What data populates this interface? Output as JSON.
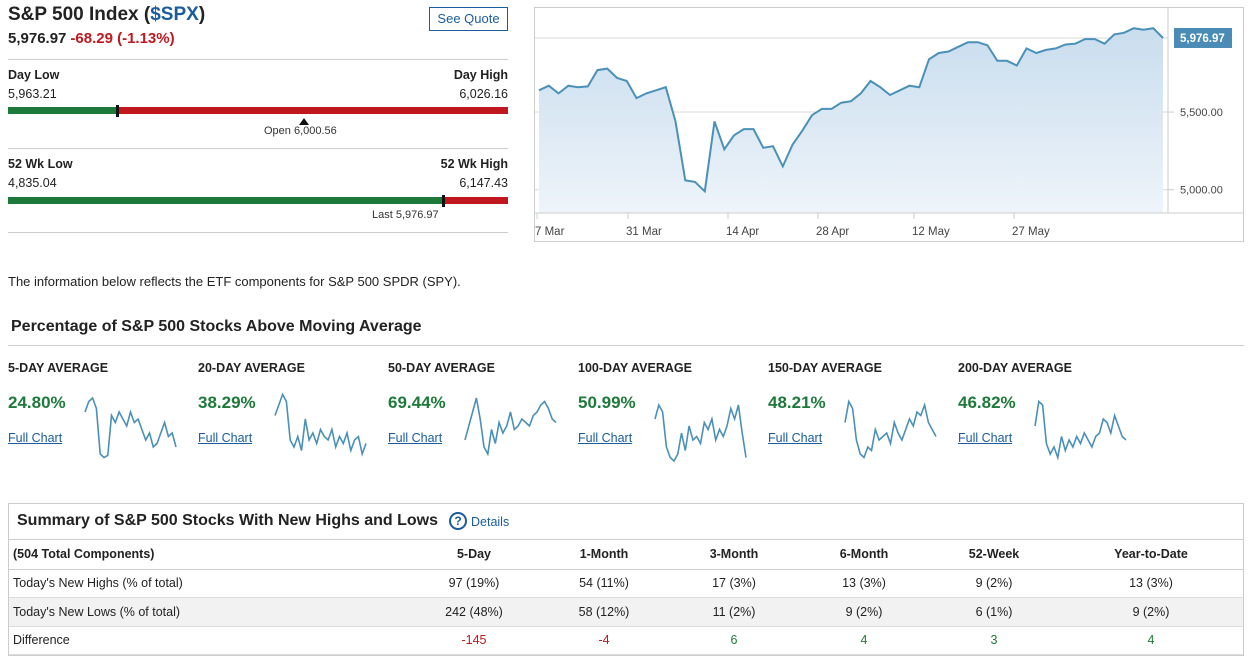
{
  "header": {
    "title_prefix": "S&P 500 Index (",
    "symbol": "$SPX",
    "title_suffix": ")",
    "price": "5,976.97",
    "change": "-68.29 (-1.13%)",
    "see_quote": "See Quote"
  },
  "day_range": {
    "low_label": "Day Low",
    "low_value": "5,963.21",
    "high_label": "Day High",
    "high_value": "6,026.16",
    "position": 0.218,
    "open_note": "Open 6,000.56",
    "open_position": 0.591
  },
  "wk52_range": {
    "low_label": "52 Wk Low",
    "low_value": "4,835.04",
    "high_label": "52 Wk High",
    "high_value": "6,147.43",
    "position": 0.87,
    "last_note": "Last 5,976.97"
  },
  "price_chart": {
    "x_labels": [
      "7 Mar",
      "31 Mar",
      "14 Apr",
      "28 Apr",
      "12 May",
      "27 May"
    ],
    "y_labels": [
      "5,500.00",
      "5,000.00"
    ],
    "current_label": "5,976.97",
    "y_ticks": [
      5500,
      5000
    ],
    "ylim": [
      4850,
      6170
    ],
    "values": [
      5640,
      5670,
      5620,
      5670,
      5660,
      5665,
      5770,
      5780,
      5720,
      5700,
      5590,
      5620,
      5640,
      5660,
      5440,
      5060,
      5050,
      4990,
      5440,
      5260,
      5350,
      5390,
      5390,
      5270,
      5280,
      5150,
      5290,
      5380,
      5480,
      5520,
      5520,
      5560,
      5570,
      5620,
      5700,
      5660,
      5610,
      5640,
      5670,
      5660,
      5840,
      5880,
      5890,
      5920,
      5950,
      5950,
      5930,
      5830,
      5830,
      5800,
      5910,
      5880,
      5900,
      5910,
      5935,
      5940,
      5970,
      5970,
      5940,
      6000,
      6010,
      6040,
      6030,
      6040,
      5977
    ],
    "colors": {
      "line": "#4a90b8",
      "fill_top": "#c9ddee",
      "fill_bottom": "#eef4fa",
      "label_bg": "#4a8cb5"
    }
  },
  "info_text": "The information below reflects the ETF components for S&P 500 SPDR (SPY).",
  "moving_avg": {
    "title": "Percentage of S&P 500 Stocks Above Moving Average",
    "link_label": "Full Chart",
    "items": [
      {
        "label": "5-DAY AVERAGE",
        "value": "24.80%",
        "spark": [
          70,
          85,
          90,
          75,
          10,
          5,
          8,
          65,
          55,
          70,
          60,
          50,
          70,
          55,
          60,
          45,
          30,
          40,
          20,
          25,
          40,
          55,
          35,
          40,
          20
        ]
      },
      {
        "label": "20-DAY AVERAGE",
        "value": "38.29%",
        "spark": [
          65,
          80,
          95,
          85,
          30,
          20,
          35,
          15,
          60,
          30,
          40,
          25,
          45,
          35,
          30,
          45,
          20,
          35,
          25,
          40,
          15,
          30,
          35,
          10,
          25
        ]
      },
      {
        "label": "50-DAY AVERAGE",
        "value": "69.44%",
        "spark": [
          30,
          50,
          70,
          90,
          60,
          20,
          10,
          45,
          25,
          55,
          40,
          50,
          70,
          45,
          50,
          60,
          55,
          50,
          65,
          70,
          80,
          85,
          75,
          60,
          55
        ]
      },
      {
        "label": "100-DAY AVERAGE",
        "value": "50.99%",
        "spark": [
          60,
          80,
          70,
          20,
          5,
          0,
          10,
          40,
          15,
          50,
          30,
          35,
          25,
          55,
          45,
          60,
          30,
          45,
          35,
          50,
          75,
          60,
          80,
          40,
          5
        ]
      },
      {
        "label": "150-DAY AVERAGE",
        "value": "48.21%",
        "spark": [
          55,
          85,
          75,
          30,
          10,
          5,
          20,
          15,
          45,
          30,
          35,
          40,
          25,
          55,
          40,
          30,
          45,
          60,
          50,
          70,
          65,
          80,
          55,
          45,
          35
        ]
      },
      {
        "label": "200-DAY AVERAGE",
        "value": "46.82%",
        "spark": [
          50,
          85,
          80,
          25,
          10,
          20,
          5,
          35,
          15,
          30,
          20,
          35,
          25,
          40,
          30,
          20,
          35,
          40,
          60,
          55,
          40,
          65,
          50,
          35,
          30
        ]
      }
    ]
  },
  "summary": {
    "title": "Summary of S&P 500 Stocks With New Highs and Lows",
    "details_label": "Details",
    "columns": [
      "(504 Total Components)",
      "5-Day",
      "1-Month",
      "3-Month",
      "6-Month",
      "52-Week",
      "Year-to-Date"
    ],
    "rows": [
      {
        "label": "Today's New Highs (% of total)",
        "cells": [
          "97 (19%)",
          "54 (11%)",
          "17 (3%)",
          "13 (3%)",
          "9 (2%)",
          "13 (3%)"
        ]
      },
      {
        "label": "Today's New Lows (% of total)",
        "cells": [
          "242 (48%)",
          "58 (12%)",
          "11 (2%)",
          "9 (2%)",
          "6 (1%)",
          "9 (2%)"
        ]
      },
      {
        "label": "Difference",
        "cells": [
          "-145",
          "-4",
          "6",
          "4",
          "3",
          "4"
        ]
      }
    ],
    "colors": {
      "negative": "#c0181e",
      "positive": "#1e7a3a"
    }
  }
}
